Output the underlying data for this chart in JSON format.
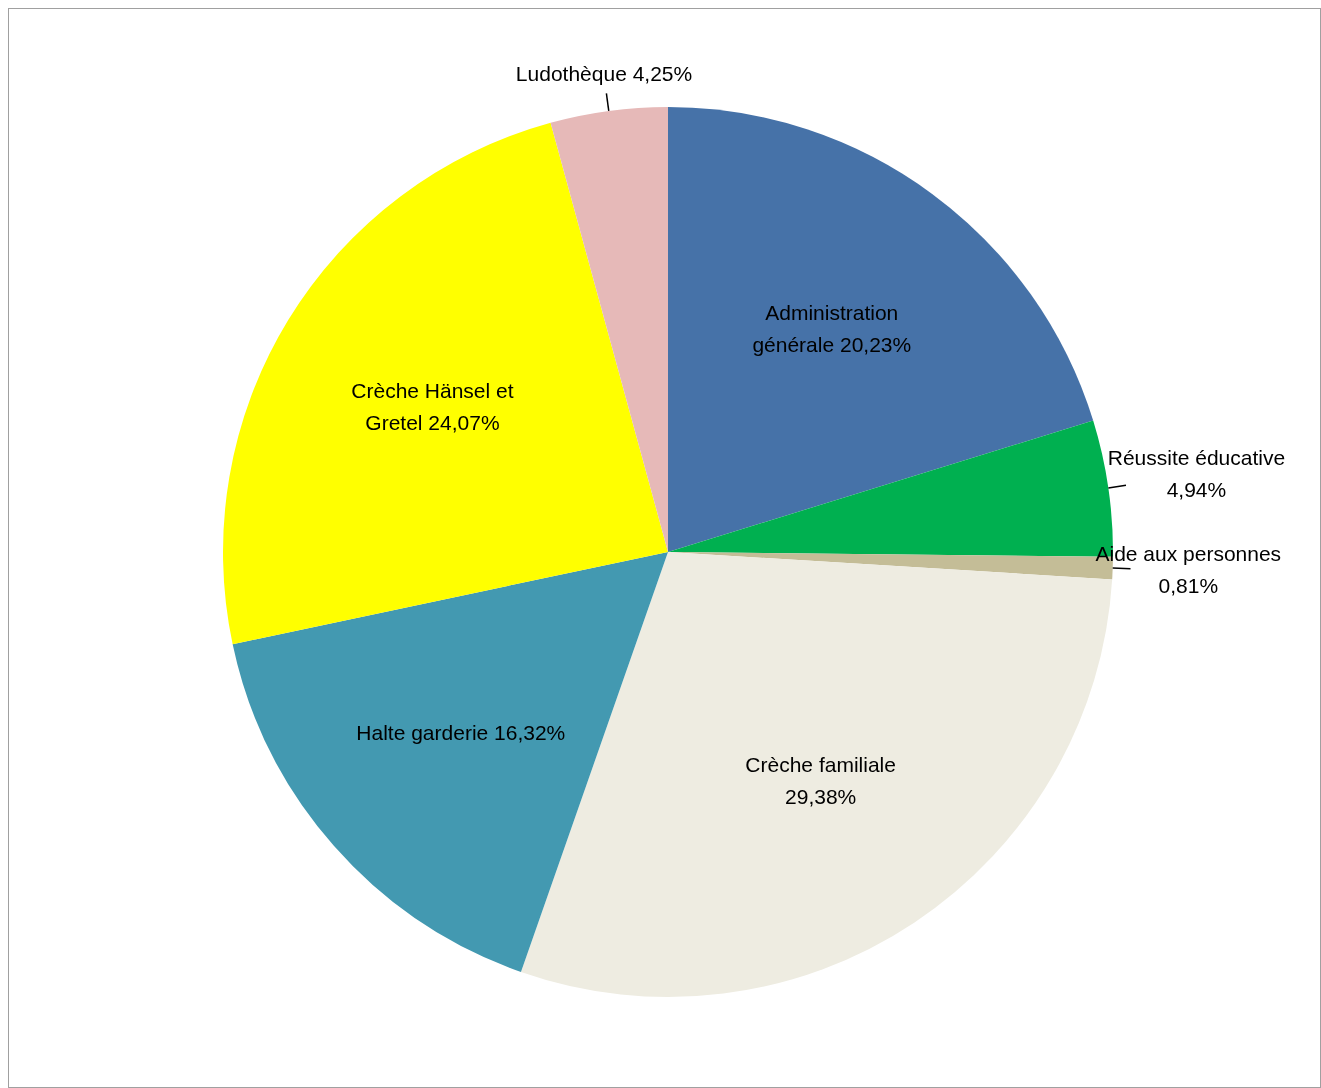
{
  "chart_data": {
    "type": "pie",
    "categories": [
      "Administration générale",
      "Réussite éducative",
      "Aide aux personnes",
      "Crèche familiale",
      "Halte garderie",
      "Crèche Hänsel et Gretel",
      "Ludothèque"
    ],
    "values": [
      20.23,
      4.94,
      0.81,
      29.38,
      16.32,
      24.07,
      4.25
    ],
    "value_labels": [
      "20,23%",
      "4,94%",
      "0,81%",
      "29,38%",
      "16,32%",
      "24,07%",
      "4,25%"
    ],
    "colors": [
      "#4672a8",
      "#00b050",
      "#c4bd97",
      "#eeece1",
      "#4399b1",
      "#ffff00",
      "#e6b9b8"
    ],
    "legend": false
  }
}
